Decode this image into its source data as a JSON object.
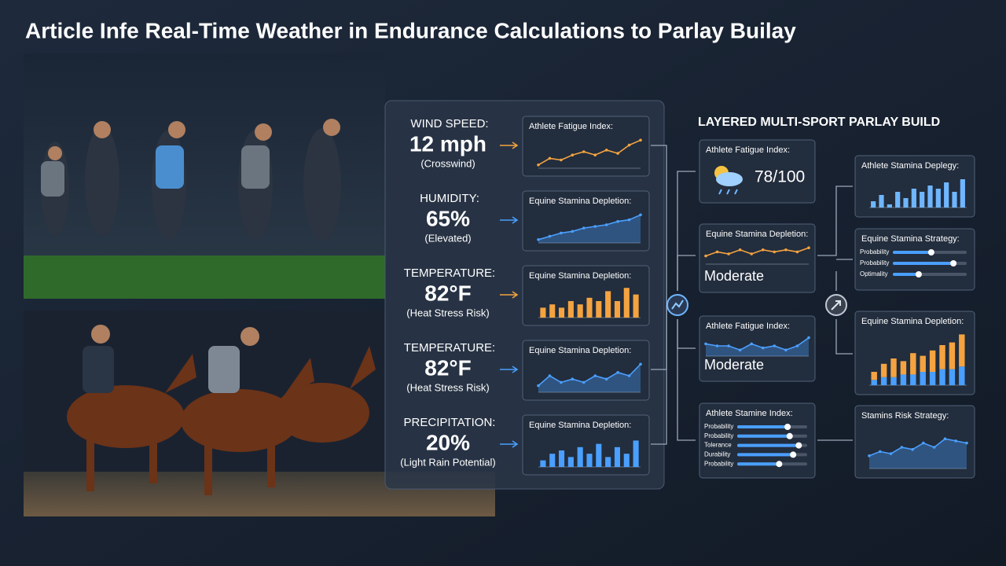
{
  "title": "Article Infe Real-Time Weather in Endurance Calculations to Parlay Builay",
  "conditions": [
    {
      "label": "WIND SPEED:",
      "value": "12 mph",
      "note": "(Crosswind)",
      "chart": {
        "type": "line",
        "title": "Athlete Fatigue Index:",
        "color": "#f4a340",
        "ylim": [
          0,
          10
        ],
        "values": [
          1,
          3,
          2.5,
          4,
          5,
          4,
          5.5,
          4.5,
          7,
          8.5
        ]
      }
    },
    {
      "label": "HUMIDITY:",
      "value": "65%",
      "note": "(Elevated)",
      "chart": {
        "type": "area",
        "title": "Equine Stamina Depletion:",
        "color": "#4a9fff",
        "ylim": [
          0,
          10
        ],
        "values": [
          1,
          2,
          3,
          3.5,
          4.5,
          5,
          5.5,
          6.5,
          7,
          8.5
        ]
      }
    },
    {
      "label": "TEMPERATURE:",
      "value": "82°F",
      "note": "(Heat Stress Risk)",
      "chart": {
        "type": "bar",
        "title": "Equine Stamina Depletion:",
        "color": "#f4a340",
        "ylim": [
          0,
          10
        ],
        "values": [
          3,
          4,
          3,
          5,
          4,
          6,
          5,
          8,
          5,
          9,
          7
        ]
      }
    },
    {
      "label": "TEMPERATURE:",
      "value": "82°F",
      "note": "(Heat Stress Risk)",
      "chart": {
        "type": "area",
        "title": "Equine Stamina Depletion:",
        "color": "#4a9fff",
        "ylim": [
          0,
          10
        ],
        "values": [
          2,
          5,
          3,
          4,
          3,
          5,
          4,
          6,
          5,
          8.5
        ]
      }
    },
    {
      "label": "PRECIPITATION:",
      "value": "20%",
      "note": "(Light Rain Potential)",
      "chart": {
        "type": "bar",
        "title": "Equine Stamina Depletion:",
        "color": "#4a9fff",
        "ylim": [
          0,
          10
        ],
        "values": [
          2,
          4,
          5,
          3,
          6,
          4,
          7,
          3,
          6,
          4,
          8
        ]
      }
    }
  ],
  "build": {
    "heading": "LAYERED MULTI-SPORT PARLAY BUILD",
    "cards": [
      {
        "type": "metric",
        "title": "Athlete Fatigue Index:",
        "value": "78/100"
      },
      {
        "type": "line",
        "title": "Equine Stamina Depletion:",
        "status": "Moderate",
        "color": "#f4a340",
        "ylim": [
          0,
          10
        ],
        "values": [
          4,
          6,
          5,
          7,
          5,
          7,
          6,
          7,
          6,
          8
        ]
      },
      {
        "type": "area",
        "title": "Athlete Fatigue Index:",
        "status": "Moderate",
        "color": "#4a9fff",
        "ylim": [
          0,
          10
        ],
        "values": [
          6,
          5,
          5,
          3,
          6,
          4,
          5,
          3,
          5,
          9
        ]
      },
      {
        "type": "sliders",
        "title": "Athlete Stamine Index:",
        "labels": [
          "Probability",
          "Probability",
          "Tolerance",
          "Durability",
          "Probability"
        ],
        "values": [
          72,
          75,
          88,
          80,
          60
        ]
      },
      {
        "type": "bar",
        "title": "Athlete Stamina Deplegy:",
        "color": "#6fb6ff",
        "ylim": [
          0,
          10
        ],
        "values": [
          2,
          4,
          1,
          5,
          3,
          6,
          5,
          7,
          6,
          8,
          5,
          9
        ]
      },
      {
        "type": "sliders",
        "title": "Equine Stamina Strategy:",
        "labels": [
          "Probability",
          "Probability",
          "Optimality"
        ],
        "values": [
          52,
          82,
          35
        ]
      },
      {
        "type": "stacked",
        "title": "Equine Stamina Depletion:",
        "ylim": [
          0,
          10
        ],
        "series": [
          {
            "color": "#4a9fff",
            "values": [
              1,
              1.5,
              1.5,
              2,
              2,
              2.5,
              2.5,
              3,
              3,
              3.5
            ]
          },
          {
            "color": "#f4a340",
            "values": [
              1.5,
              2.5,
              3.5,
              2.5,
              4,
              3,
              4,
              4.5,
              5,
              6
            ]
          }
        ]
      },
      {
        "type": "area",
        "title": "Stamins Risk Strategy:",
        "color": "#4a9fff",
        "ylim": [
          0,
          10
        ],
        "values": [
          3,
          4,
          3.5,
          5,
          4.5,
          6,
          5,
          7,
          6.5,
          6
        ]
      }
    ]
  }
}
